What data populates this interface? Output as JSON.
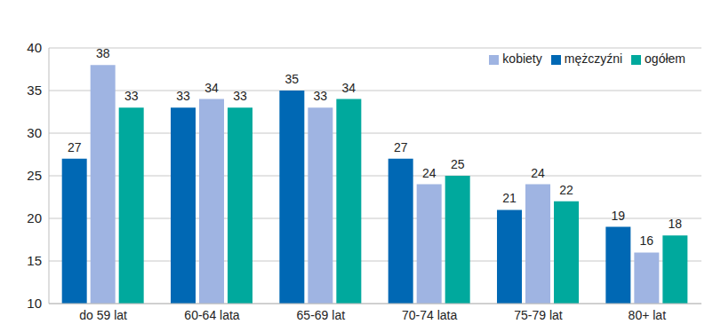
{
  "chart_data": {
    "type": "bar",
    "categories": [
      "do 59 lat",
      "60-64 lata",
      "65-69 lat",
      "70-74 lata",
      "75-79 lat",
      "80+ lat"
    ],
    "series": [
      {
        "name": "mężczyźni",
        "color": "#0068b4",
        "values": [
          27,
          33,
          35,
          27,
          21,
          19
        ]
      },
      {
        "name": "kobiety",
        "color": "#9fb4e2",
        "values": [
          38,
          34,
          33,
          24,
          24,
          16
        ]
      },
      {
        "name": "ogółem",
        "color": "#00a99d",
        "values": [
          33,
          33,
          34,
          25,
          22,
          18
        ]
      }
    ],
    "ylim": [
      10,
      40
    ],
    "yticks": [
      10,
      15,
      20,
      25,
      30,
      35,
      40
    ],
    "grid": true,
    "legend": "top-right",
    "data_labels": true
  }
}
